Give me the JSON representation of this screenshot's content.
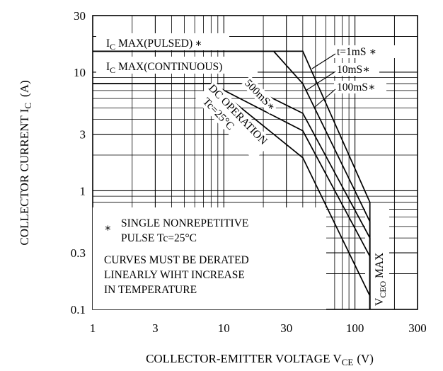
{
  "chart_data": {
    "type": "line",
    "title": "",
    "xlabel": "COLLECTOR-EMITTER VOLTAGE V",
    "xlabel_sub": "CE",
    "xlabel_unit": "(V)",
    "ylabel": "COLLECTOR CURRENT I",
    "ylabel_sub": "C",
    "ylabel_unit": "(A)",
    "x_scale": "log",
    "y_scale": "log",
    "xlim": [
      1,
      300
    ],
    "ylim": [
      0.1,
      30
    ],
    "grid": true,
    "x_ticks": [
      1,
      3,
      10,
      30,
      100,
      300
    ],
    "x_tick_labels": [
      "1",
      "3",
      "10",
      "30",
      "100",
      "300"
    ],
    "y_ticks": [
      0.1,
      0.3,
      1,
      3,
      10,
      30
    ],
    "y_tick_labels": [
      "0.1",
      "0.3",
      "1",
      "3",
      "10",
      "30"
    ],
    "series": [
      {
        "name": "t=1mS",
        "x": [
          1,
          40,
          130,
          130
        ],
        "y": [
          15,
          15,
          0.8,
          0.1
        ]
      },
      {
        "name": "10mS",
        "x": [
          1,
          24,
          40,
          130,
          130
        ],
        "y": [
          15,
          15,
          8,
          0.55,
          0.1
        ]
      },
      {
        "name": "100mS",
        "x": [
          1,
          14,
          40,
          130,
          130
        ],
        "y": [
          8,
          8,
          4.5,
          0.4,
          0.1
        ]
      },
      {
        "name": "500mS",
        "x": [
          1,
          8,
          40,
          130,
          130
        ],
        "y": [
          8,
          8,
          3.2,
          0.28,
          0.1
        ]
      },
      {
        "name": "DC OPERATION",
        "x": [
          1,
          8,
          40,
          130,
          130
        ],
        "y": [
          8,
          8,
          1.9,
          0.13,
          0.1
        ]
      }
    ],
    "annotations": {
      "ic_pulsed": {
        "main": "I",
        "sub": "C",
        "rest": " MAX(PULSED)",
        "mark": "∗"
      },
      "ic_cont": {
        "main": "I",
        "sub": "C",
        "rest": " MAX(CONTINUOUS)"
      },
      "t1ms": {
        "text": "t=1mS",
        "mark": "∗"
      },
      "ms10": {
        "text": "10mS",
        "mark": "∗"
      },
      "ms100": {
        "text": "100mS",
        "mark": "∗"
      },
      "ms500": {
        "text": "500mS",
        "mark": "∗"
      },
      "dc_line1": "DC OPERATION",
      "dc_line2": "Tc=25°C",
      "vceo": {
        "main": "V",
        "sub": "CEO",
        "rest": " MAX"
      },
      "note_mark": "∗",
      "note_line1": "SINGLE NONREPETITIVE",
      "note_line2": "PULSE Tc=25°C",
      "note_line3": "CURVES MUST BE DERATED",
      "note_line4": "LINEARLY WIHT INCREASE",
      "note_line5": "IN TEMPERATURE"
    }
  }
}
